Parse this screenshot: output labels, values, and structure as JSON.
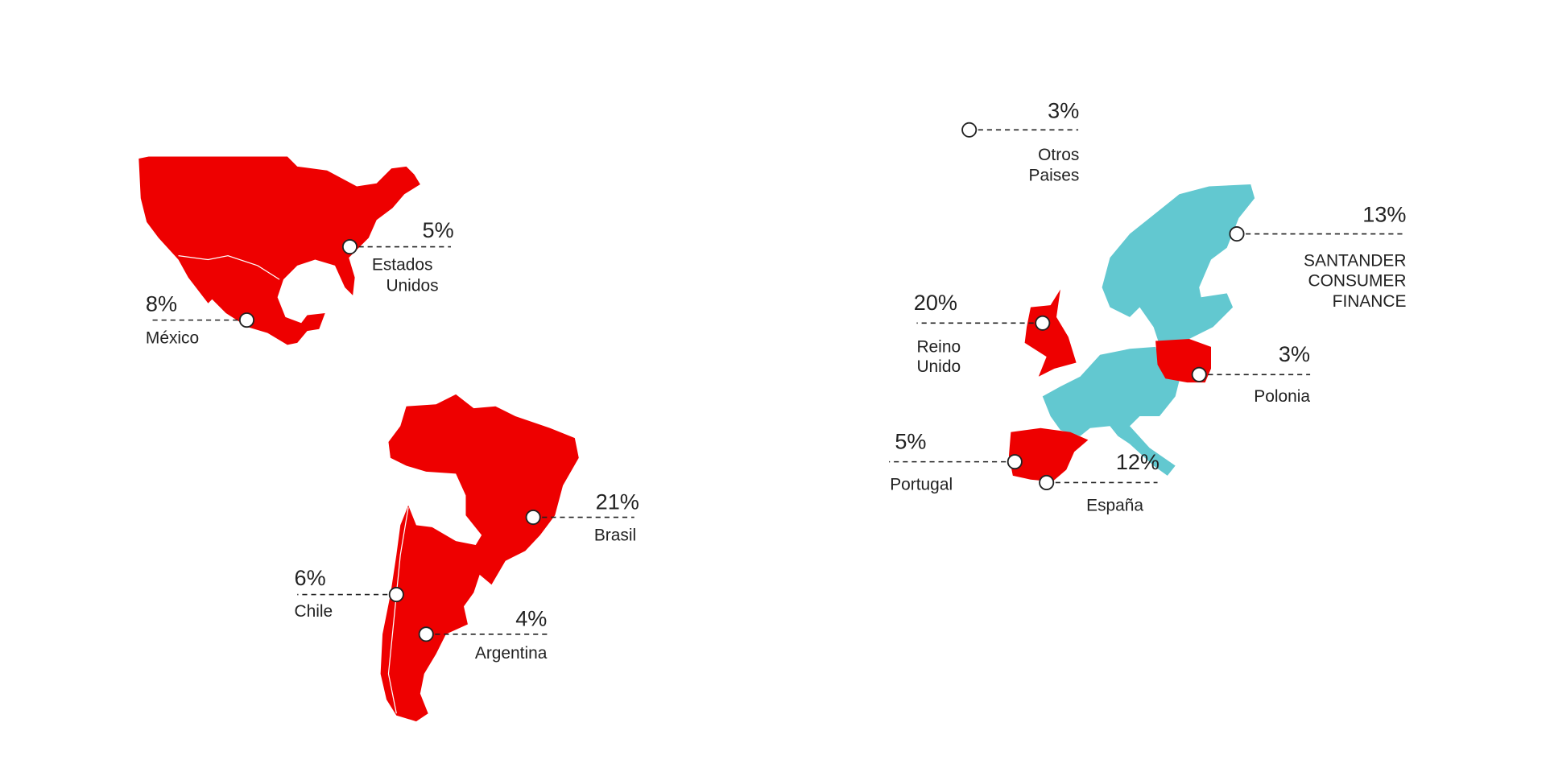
{
  "regions": [
    {
      "share": "5%",
      "name": [
        "Estados",
        "Unidos"
      ]
    },
    {
      "share": "8%",
      "name": [
        "México"
      ]
    },
    {
      "share": "21%",
      "name": [
        "Brasil"
      ]
    },
    {
      "share": "6%",
      "name": [
        "Chile"
      ]
    },
    {
      "share": "4%",
      "name": [
        "Argentina"
      ]
    },
    {
      "share": "3%",
      "name": [
        "Otros",
        "Paises"
      ]
    },
    {
      "share": "13%",
      "name": [
        "SANTANDER",
        "CONSUMER",
        "FINANCE"
      ]
    },
    {
      "share": "20%",
      "name": [
        "Reino",
        "Unido"
      ]
    },
    {
      "share": "3%",
      "name": [
        "Polonia"
      ]
    },
    {
      "share": "5%",
      "name": [
        "Portugal"
      ]
    },
    {
      "share": "12%",
      "name": [
        "España"
      ]
    }
  ]
}
